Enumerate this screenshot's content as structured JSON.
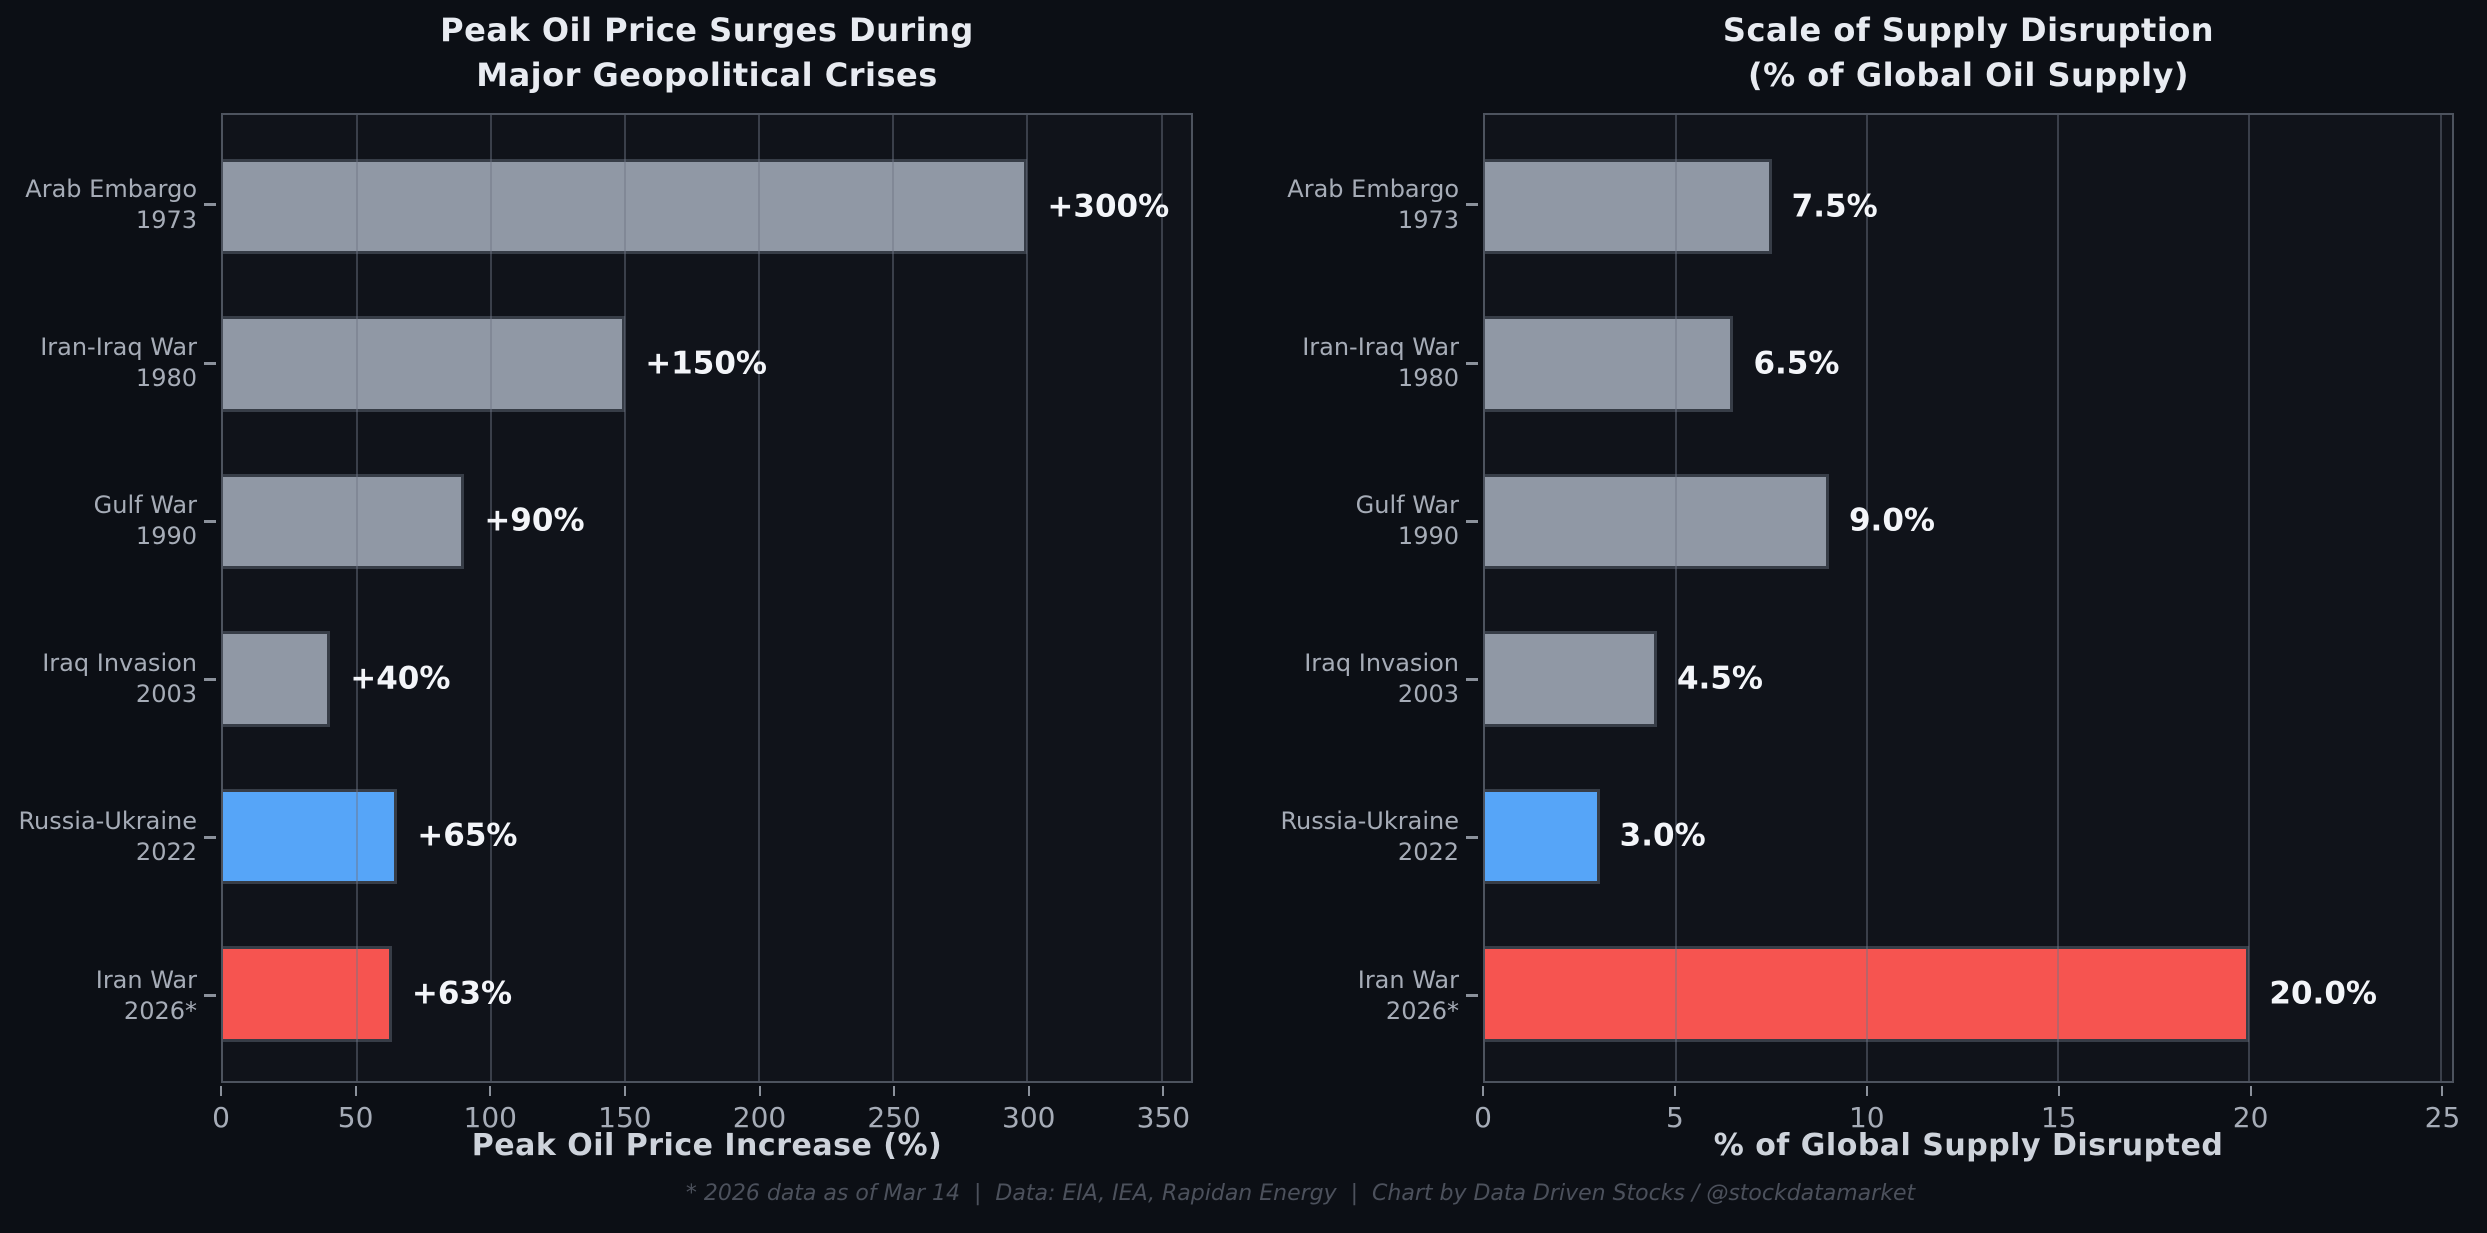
{
  "colors": {
    "figure_bg": "#0c0f15",
    "axes_bg": "#10131a",
    "spine": "#4d535e",
    "grid": "rgba(110,118,134,0.45)",
    "bar_gray": "#9098a5",
    "bar_blue": "#56a5f8",
    "bar_red": "#f65450",
    "bar_edge": "#373d47",
    "title_text": "#e8ebf1",
    "label_text": "#a6acb7",
    "value_text": "#f3f5f9",
    "xlabel_text": "#ced3db",
    "footer_text": "#4c515c"
  },
  "footer": {
    "text": "* 2026 data as of Mar 14  |  Data: EIA, IEA, Rapidan Energy  |  Chart by Data Driven Stocks / @stockdatamarket"
  },
  "chart_data": [
    {
      "type": "bar",
      "orientation": "horizontal",
      "title_lines": [
        "Peak Oil Price Surges During",
        "Major Geopolitical Crises"
      ],
      "categories": [
        [
          "Arab Embargo",
          "1973"
        ],
        [
          "Iran-Iraq War",
          "1980"
        ],
        [
          "Gulf War",
          "1990"
        ],
        [
          "Iraq Invasion",
          "2003"
        ],
        [
          "Russia-Ukraine",
          "2022"
        ],
        [
          "Iran War",
          "2026*"
        ]
      ],
      "values": [
        300,
        150,
        90,
        40,
        65,
        63
      ],
      "value_labels": [
        "+300%",
        "+150%",
        "+90%",
        "+40%",
        "+65%",
        "+63%"
      ],
      "bar_colors": [
        "gray",
        "gray",
        "gray",
        "gray",
        "blue",
        "red"
      ],
      "xlabel": "Peak Oil Price Increase (%)",
      "xticks": [
        0,
        50,
        100,
        150,
        200,
        250,
        300,
        350
      ],
      "xlim": [
        0,
        361
      ],
      "grid": "vertical",
      "legend": "none"
    },
    {
      "type": "bar",
      "orientation": "horizontal",
      "title_lines": [
        "Scale of Supply Disruption",
        "(% of Global Oil Supply)"
      ],
      "categories": [
        [
          "Arab Embargo",
          "1973"
        ],
        [
          "Iran-Iraq War",
          "1980"
        ],
        [
          "Gulf War",
          "1990"
        ],
        [
          "Iraq Invasion",
          "2003"
        ],
        [
          "Russia-Ukraine",
          "2022"
        ],
        [
          "Iran War",
          "2026*"
        ]
      ],
      "values": [
        7.5,
        6.5,
        9.0,
        4.5,
        3.0,
        20.0
      ],
      "value_labels": [
        "7.5%",
        "6.5%",
        "9.0%",
        "4.5%",
        "3.0%",
        "20.0%"
      ],
      "bar_colors": [
        "gray",
        "gray",
        "gray",
        "gray",
        "blue",
        "red"
      ],
      "xlabel": "% of Global Supply Disrupted",
      "xticks": [
        0,
        5,
        10,
        15,
        20,
        25
      ],
      "xlim": [
        0,
        25.3
      ],
      "grid": "vertical",
      "legend": "none"
    }
  ]
}
